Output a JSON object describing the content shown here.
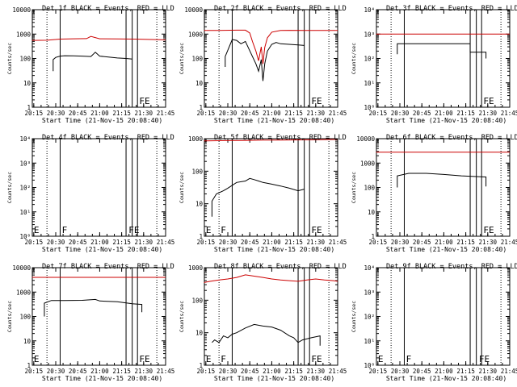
{
  "chart_data": [
    {
      "type": "line",
      "title": "Det 1f BLACK = Events, RED = LLD",
      "xlabel": "Start Time (21-Nov-15 20:08:40)",
      "ylabel": "Counts/sec",
      "yscale": "log",
      "ylim": [
        1,
        10000
      ],
      "yticks": [
        "1",
        "10",
        "100",
        "1000",
        "10000"
      ],
      "xlim": [
        20.2333,
        21.75
      ],
      "xticks": [
        "20:15",
        "20:30",
        "20:45",
        "21:00",
        "21:15",
        "21:30",
        "21:45"
      ],
      "xtick_values": [
        20.25,
        20.5,
        20.75,
        21.0,
        21.25,
        21.5,
        21.75
      ],
      "dotted_lines": [
        20.4,
        21.65
      ],
      "solid_lines": [
        20.55,
        21.3,
        21.37,
        21.43
      ],
      "markers": [
        {
          "x": 21.45,
          "text": "FE"
        }
      ],
      "series": [
        {
          "color": "#000000",
          "x": [
            20.47,
            20.47,
            20.5,
            20.55,
            20.6,
            20.7,
            20.8,
            20.9,
            20.95,
            21.0,
            21.1,
            21.2,
            21.3,
            21.37
          ],
          "y": [
            30,
            90,
            110,
            125,
            130,
            128,
            125,
            120,
            180,
            125,
            115,
            105,
            100,
            95
          ]
        },
        {
          "color": "#cc0000",
          "x": [
            20.23,
            20.4,
            20.55,
            20.7,
            20.85,
            20.9,
            21.0,
            21.2,
            21.4,
            21.6,
            21.75
          ],
          "y": [
            550,
            560,
            620,
            640,
            650,
            800,
            640,
            630,
            620,
            600,
            580
          ]
        }
      ]
    },
    {
      "type": "line",
      "title": "Det 2f BLACK = Events, RED = LLD",
      "xlabel": "Start Time (21-Nov-15 20:08:40)",
      "ylabel": "Counts/sec",
      "yscale": "log",
      "ylim": [
        1,
        10000
      ],
      "yticks": [
        "1",
        "10",
        "100",
        "1000",
        "10000"
      ],
      "xlim": [
        20.2333,
        21.75
      ],
      "xticks": [
        "20:15",
        "20:30",
        "20:45",
        "21:00",
        "21:15",
        "21:30",
        "21:45"
      ],
      "xtick_values": [
        20.25,
        20.5,
        20.75,
        21.0,
        21.25,
        21.5,
        21.75
      ],
      "dotted_lines": [
        20.4,
        21.65
      ],
      "solid_lines": [
        20.55,
        21.3,
        21.37,
        21.43
      ],
      "markers": [
        {
          "x": 21.45,
          "text": "FE"
        }
      ],
      "series": [
        {
          "color": "#000000",
          "x": [
            20.47,
            20.47,
            20.55,
            20.6,
            20.65,
            20.7,
            20.78,
            20.82,
            20.85,
            20.88,
            20.9,
            20.92,
            20.95,
            21.0,
            21.05,
            21.1,
            21.2,
            21.3,
            21.37
          ],
          "y": [
            45,
            120,
            600,
            550,
            400,
            500,
            120,
            60,
            30,
            90,
            12,
            60,
            200,
            380,
            450,
            400,
            380,
            360,
            340
          ]
        },
        {
          "color": "#cc0000",
          "x": [
            20.23,
            20.4,
            20.6,
            20.7,
            20.75,
            20.78,
            20.82,
            20.85,
            20.88,
            20.9,
            20.92,
            20.95,
            21.0,
            21.1,
            21.2,
            21.4,
            21.6,
            21.75
          ],
          "y": [
            1400,
            1400,
            1450,
            1450,
            1100,
            500,
            200,
            80,
            300,
            60,
            280,
            700,
            1200,
            1400,
            1420,
            1400,
            1400,
            1400
          ]
        }
      ]
    },
    {
      "type": "line",
      "title": "Det 3f BLACK = Events, RED = LLD",
      "xlabel": "Start Time (21-Nov-15 20:08:40)",
      "ylabel": "Counts/sec",
      "yscale": "log",
      "ylim": [
        1,
        10000
      ],
      "yticks": [
        "10⁰",
        "10¹",
        "10²",
        "10³",
        "10⁴"
      ],
      "xlim": [
        20.2333,
        21.75
      ],
      "xticks": [
        "20:15",
        "20:30",
        "20:45",
        "21:00",
        "21:15",
        "21:30",
        "21:45"
      ],
      "xtick_values": [
        20.25,
        20.5,
        20.75,
        21.0,
        21.25,
        21.5,
        21.75
      ],
      "dotted_lines": [
        20.4,
        21.65
      ],
      "solid_lines": [
        20.55,
        21.3,
        21.37,
        21.43
      ],
      "markers": [
        {
          "x": 21.45,
          "text": "FE"
        }
      ],
      "series": [
        {
          "color": "#000000",
          "x": [
            20.47,
            20.47,
            21.3,
            21.3,
            21.48,
            21.48
          ],
          "y": [
            150,
            400,
            400,
            180,
            180,
            100
          ]
        },
        {
          "color": "#cc0000",
          "x": [
            20.23,
            21.75
          ],
          "y": [
            1000,
            1000
          ]
        }
      ]
    },
    {
      "type": "line",
      "title": "Det 4f BLACK = Events, RED = LLD",
      "xlabel": "Start Time (21-Nov-15 20:08:40)",
      "ylabel": "Counts/sec",
      "yscale": "log",
      "ylim": [
        1,
        10000
      ],
      "yticks": [
        "10⁰",
        "10¹",
        "10²",
        "10³",
        "10⁴"
      ],
      "xlim": [
        20.2333,
        21.75
      ],
      "xticks": [
        "20:15",
        "20:30",
        "20:45",
        "21:00",
        "21:15",
        "21:30",
        "21:45"
      ],
      "xtick_values": [
        20.25,
        20.5,
        20.75,
        21.0,
        21.25,
        21.5,
        21.75
      ],
      "dotted_lines": [
        20.4,
        21.65
      ],
      "solid_lines": [
        20.55,
        21.3,
        21.37,
        21.43
      ],
      "markers": [
        {
          "x": 20.25,
          "text": "E"
        },
        {
          "x": 20.57,
          "text": "F"
        },
        {
          "x": 21.33,
          "text": "FE"
        }
      ],
      "series": []
    },
    {
      "type": "line",
      "title": "Det 5f BLACK = Events, RED = LLD",
      "xlabel": "Start Time (21-Nov-15 20:08:40)",
      "ylabel": "Counts/sec",
      "yscale": "log",
      "ylim": [
        1,
        1000
      ],
      "yticks": [
        "1",
        "10",
        "100",
        "1000"
      ],
      "xlim": [
        20.2333,
        21.75
      ],
      "xticks": [
        "20:15",
        "20:30",
        "20:45",
        "21:00",
        "21:15",
        "21:30",
        "21:45"
      ],
      "xtick_values": [
        20.25,
        20.5,
        20.75,
        21.0,
        21.25,
        21.5,
        21.75
      ],
      "dotted_lines": [
        20.4,
        21.65
      ],
      "solid_lines": [
        20.55,
        21.3,
        21.37,
        21.43
      ],
      "markers": [
        {
          "x": 20.25,
          "text": "E"
        },
        {
          "x": 20.42,
          "text": "F"
        },
        {
          "x": 21.45,
          "text": "FE"
        }
      ],
      "series": [
        {
          "color": "#000000",
          "x": [
            20.32,
            20.32,
            20.37,
            20.45,
            20.5,
            20.6,
            20.7,
            20.75,
            20.8,
            20.85,
            20.9,
            21.0,
            21.1,
            21.2,
            21.3,
            21.37
          ],
          "y": [
            4,
            12,
            20,
            25,
            30,
            45,
            50,
            60,
            55,
            50,
            45,
            40,
            35,
            30,
            25,
            28
          ]
        },
        {
          "color": "#cc0000",
          "x": [
            20.23,
            20.5,
            20.7,
            20.9,
            21.1,
            21.3,
            21.5,
            21.75
          ],
          "y": [
            850,
            870,
            880,
            900,
            910,
            920,
            930,
            950
          ]
        }
      ]
    },
    {
      "type": "line",
      "title": "Det 6f BLACK = Events, RED = LLD",
      "xlabel": "Start Time (21-Nov-15 20:08:40)",
      "ylabel": "Counts/sec",
      "yscale": "log",
      "ylim": [
        1,
        10000
      ],
      "yticks": [
        "1",
        "10",
        "100",
        "1000",
        "10000"
      ],
      "xlim": [
        20.2333,
        21.75
      ],
      "xticks": [
        "20:15",
        "20:30",
        "20:45",
        "21:00",
        "21:15",
        "21:30",
        "21:45"
      ],
      "xtick_values": [
        20.25,
        20.5,
        20.75,
        21.0,
        21.25,
        21.5,
        21.75
      ],
      "dotted_lines": [
        20.4,
        21.65
      ],
      "solid_lines": [
        20.55,
        21.3,
        21.37,
        21.43
      ],
      "markers": [
        {
          "x": 21.45,
          "text": "FE"
        }
      ],
      "series": [
        {
          "color": "#000000",
          "x": [
            20.47,
            20.47,
            20.6,
            20.8,
            21.0,
            21.2,
            21.37,
            21.48,
            21.48
          ],
          "y": [
            100,
            300,
            380,
            380,
            340,
            300,
            280,
            270,
            110
          ]
        },
        {
          "color": "#cc0000",
          "x": [
            20.23,
            21.75
          ],
          "y": [
            2800,
            2800
          ]
        }
      ]
    },
    {
      "type": "line",
      "title": "Det 7f BLACK = Events, RED = LLD",
      "xlabel": "Start Time (21-Nov-15 20:08:40)",
      "ylabel": "Counts/sec",
      "yscale": "log",
      "ylim": [
        1,
        10000
      ],
      "yticks": [
        "1",
        "10",
        "100",
        "1000",
        "10000"
      ],
      "xlim": [
        20.2333,
        21.75
      ],
      "xticks": [
        "20:15",
        "20:30",
        "20:45",
        "21:00",
        "21:15",
        "21:30",
        "21:45"
      ],
      "xtick_values": [
        20.25,
        20.5,
        20.75,
        21.0,
        21.25,
        21.5,
        21.75
      ],
      "dotted_lines": [
        20.4,
        21.65
      ],
      "solid_lines": [
        20.55,
        21.3,
        21.37,
        21.43
      ],
      "markers": [
        {
          "x": 20.25,
          "text": "E"
        },
        {
          "x": 21.45,
          "text": "FE"
        }
      ],
      "series": [
        {
          "color": "#000000",
          "x": [
            20.37,
            20.37,
            20.45,
            20.6,
            20.8,
            20.95,
            21.0,
            21.2,
            21.37,
            21.48,
            21.48
          ],
          "y": [
            100,
            350,
            450,
            450,
            460,
            500,
            430,
            400,
            330,
            310,
            150
          ]
        },
        {
          "color": "#cc0000",
          "x": [
            20.23,
            21.75
          ],
          "y": [
            4000,
            4000
          ]
        }
      ]
    },
    {
      "type": "line",
      "title": "Det 8f BLACK = Events, RED = LLD",
      "xlabel": "Start Time (21-Nov-15 20:08:40)",
      "ylabel": "Counts/sec",
      "yscale": "log",
      "ylim": [
        1,
        1000
      ],
      "yticks": [
        "1",
        "10",
        "100",
        "1000"
      ],
      "xlim": [
        20.2333,
        21.75
      ],
      "xticks": [
        "20:15",
        "20:30",
        "20:45",
        "21:00",
        "21:15",
        "21:30",
        "21:45"
      ],
      "xtick_values": [
        20.25,
        20.5,
        20.75,
        21.0,
        21.25,
        21.5,
        21.75
      ],
      "dotted_lines": [
        20.4,
        21.65
      ],
      "solid_lines": [
        20.55,
        21.3,
        21.37,
        21.43
      ],
      "markers": [
        {
          "x": 20.25,
          "text": "E"
        },
        {
          "x": 20.42,
          "text": "F"
        },
        {
          "x": 21.45,
          "text": "FE"
        }
      ],
      "series": [
        {
          "color": "#000000",
          "x": [
            20.32,
            20.35,
            20.4,
            20.45,
            20.5,
            20.55,
            20.6,
            20.7,
            20.8,
            20.9,
            21.0,
            21.1,
            21.2,
            21.25,
            21.3,
            21.35,
            21.45,
            21.55,
            21.55
          ],
          "y": [
            5,
            6,
            5,
            8,
            7,
            9,
            10,
            14,
            18,
            16,
            15,
            12,
            8,
            7,
            5,
            6,
            7,
            8,
            4
          ]
        },
        {
          "color": "#cc0000",
          "x": [
            20.23,
            20.3,
            20.4,
            20.5,
            20.6,
            20.7,
            20.8,
            20.9,
            21.0,
            21.1,
            21.2,
            21.3,
            21.4,
            21.5,
            21.6,
            21.7,
            21.75
          ],
          "y": [
            350,
            380,
            420,
            450,
            500,
            600,
            550,
            500,
            450,
            420,
            400,
            380,
            420,
            450,
            420,
            400,
            380
          ]
        }
      ]
    },
    {
      "type": "line",
      "title": "Det 9f BLACK = Events, RED = LLD",
      "xlabel": "Start Time (21-Nov-15 20:08:40)",
      "ylabel": "Counts/sec",
      "yscale": "log",
      "ylim": [
        1,
        10000
      ],
      "yticks": [
        "10⁰",
        "10¹",
        "10²",
        "10³",
        "10⁴"
      ],
      "xlim": [
        20.2333,
        21.75
      ],
      "xticks": [
        "20:15",
        "20:30",
        "20:45",
        "21:00",
        "21:15",
        "21:30",
        "21:45"
      ],
      "xtick_values": [
        20.25,
        20.5,
        20.75,
        21.0,
        21.25,
        21.5,
        21.75
      ],
      "dotted_lines": [
        20.4,
        21.65
      ],
      "solid_lines": [
        20.55,
        21.3,
        21.37,
        21.43
      ],
      "markers": [
        {
          "x": 20.25,
          "text": "E"
        },
        {
          "x": 20.57,
          "text": "F"
        },
        {
          "x": 21.4,
          "text": "FE"
        }
      ],
      "series": []
    }
  ]
}
